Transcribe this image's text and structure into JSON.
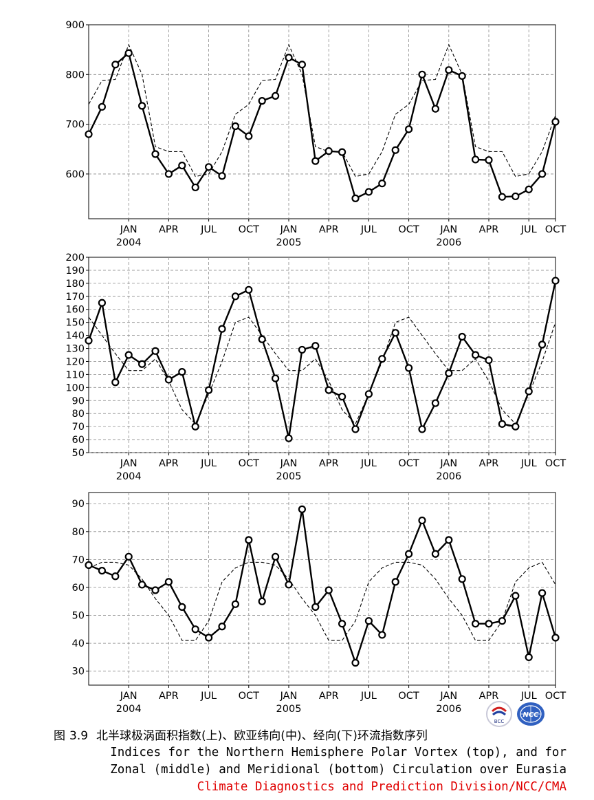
{
  "chart_data": [
    {
      "type": "line",
      "name": "polar-vortex-area",
      "xlabels": [
        "JAN",
        "APR",
        "JUL",
        "OCT",
        "JAN",
        "APR",
        "JUL",
        "OCT",
        "JAN",
        "APR",
        "JUL",
        "OCT"
      ],
      "years": [
        "2004",
        "2005",
        "2006"
      ],
      "ylim": [
        510,
        900
      ],
      "yticks": [
        600,
        700,
        800,
        900
      ],
      "series": [
        {
          "name": "observed",
          "style": "solid-markers",
          "values": [
            680,
            735,
            820,
            843,
            737,
            640,
            600,
            617,
            573,
            614,
            596,
            696,
            676,
            747,
            757,
            834,
            820,
            626,
            646,
            644,
            551,
            564,
            581,
            648,
            690,
            800,
            731,
            809,
            797,
            629,
            628,
            554,
            555,
            569,
            600,
            705
          ]
        },
        {
          "name": "climatology",
          "style": "dashed",
          "values": [
            740,
            788,
            790,
            860,
            800,
            655,
            645,
            645,
            595,
            600,
            645,
            720,
            740,
            788,
            790,
            860,
            800,
            655,
            645,
            645,
            595,
            600,
            645,
            720,
            740,
            788,
            790,
            860,
            800,
            655,
            645,
            645,
            595,
            600,
            645,
            718
          ]
        }
      ]
    },
    {
      "type": "line",
      "name": "zonal-circulation",
      "xlabels": [
        "JAN",
        "APR",
        "JUL",
        "OCT",
        "JAN",
        "APR",
        "JUL",
        "OCT",
        "JAN",
        "APR",
        "JUL",
        "OCT"
      ],
      "years": [
        "2004",
        "2005",
        "2006"
      ],
      "ylim": [
        50,
        200
      ],
      "yticks": [
        50,
        60,
        70,
        80,
        90,
        100,
        110,
        120,
        130,
        140,
        150,
        160,
        170,
        180,
        190,
        200
      ],
      "series": [
        {
          "name": "observed",
          "style": "solid-markers",
          "values": [
            136,
            165,
            104,
            125,
            118,
            128,
            106,
            112,
            70,
            98,
            145,
            170,
            175,
            137,
            107,
            61,
            129,
            132,
            98,
            93,
            68,
            95,
            122,
            142,
            115,
            68,
            88,
            111,
            139,
            125,
            121,
            72,
            70,
            97,
            133,
            182
          ]
        },
        {
          "name": "climatology",
          "style": "dashed",
          "values": [
            154,
            140,
            126,
            113,
            113,
            122,
            105,
            83,
            72,
            95,
            120,
            150,
            154,
            140,
            126,
            113,
            113,
            122,
            105,
            83,
            72,
            95,
            120,
            150,
            154,
            140,
            126,
            113,
            113,
            122,
            105,
            83,
            72,
            95,
            120,
            150
          ]
        }
      ]
    },
    {
      "type": "line",
      "name": "meridional-circulation",
      "xlabels": [
        "JAN",
        "APR",
        "JUL",
        "OCT",
        "JAN",
        "APR",
        "JUL",
        "OCT",
        "JAN",
        "APR",
        "JUL",
        "OCT"
      ],
      "years": [
        "2004",
        "2005",
        "2006"
      ],
      "ylim": [
        25,
        94
      ],
      "yticks": [
        30,
        40,
        50,
        60,
        70,
        80,
        90
      ],
      "series": [
        {
          "name": "observed",
          "style": "solid-markers",
          "values": [
            68,
            66,
            64,
            71,
            61,
            59,
            62,
            53,
            45,
            42,
            46,
            54,
            77,
            55,
            71,
            61,
            88,
            53,
            59,
            47,
            33,
            48,
            43,
            62,
            72,
            84,
            72,
            77,
            63,
            47,
            47,
            48,
            57,
            35,
            58,
            42
          ]
        },
        {
          "name": "climatology",
          "style": "dashed",
          "values": [
            67,
            69,
            69,
            68,
            63,
            56,
            50,
            41,
            41,
            48,
            62,
            67,
            69,
            69,
            68,
            63,
            56,
            50,
            41,
            41,
            48,
            62,
            67,
            69,
            69,
            68,
            63,
            56,
            50,
            41,
            41,
            48,
            62,
            67,
            69,
            61
          ]
        }
      ]
    }
  ],
  "caption": {
    "figure_label": "图",
    "figure_number": "3.9",
    "chinese_title": "北半球极涡面积指数(上)、欧亚纬向(中)、经向(下)环流指数序列",
    "english_line1": "Indices for the Northern Hemisphere Polar Vortex (top), and for",
    "english_line2": "Zonal (middle) and Meridional (bottom) Circulation over Eurasia",
    "credit": "Climate Diagnostics and Prediction Division/NCC/CMA"
  },
  "logos": {
    "left": "BCC",
    "right": "NCC"
  }
}
